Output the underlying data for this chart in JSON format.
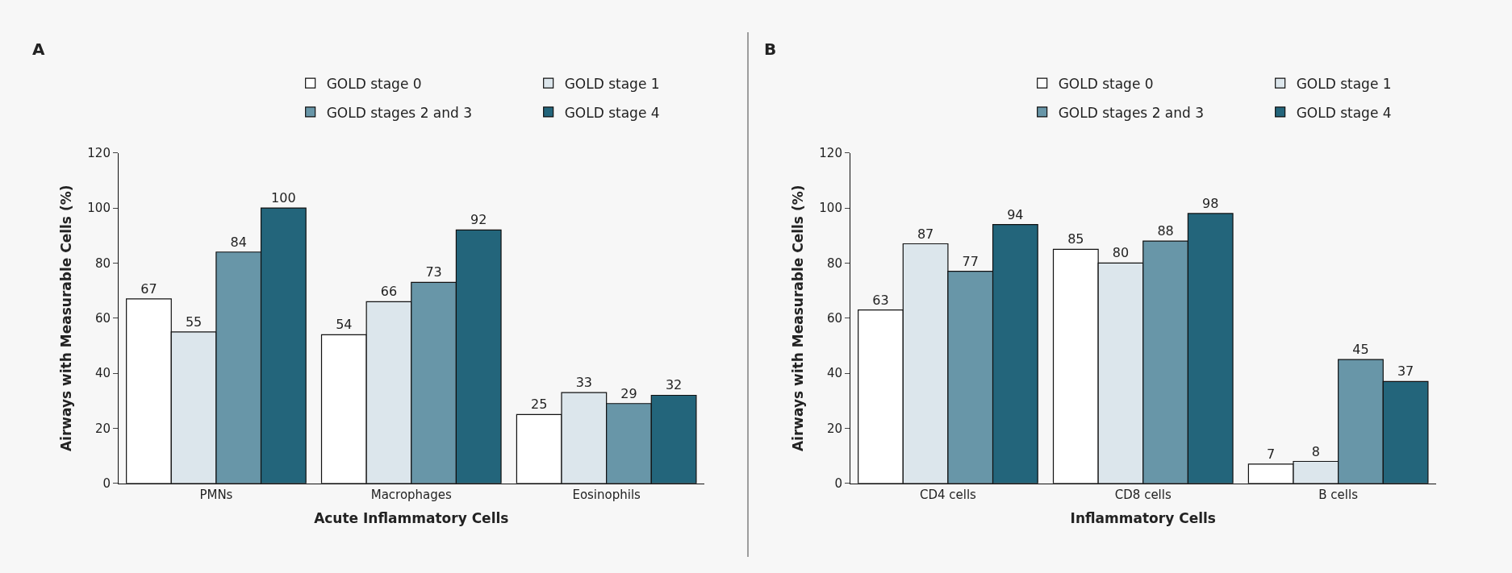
{
  "chart_data": [
    {
      "type": "bar",
      "title": "A",
      "xlabel": "Acute Inflammatory Cells",
      "ylabel": "Airways with Measurable Cells (%)",
      "categories": [
        "PMNs",
        "Macrophages",
        "Eosinophils"
      ],
      "series": [
        {
          "name": "GOLD stage 0",
          "color": "#ffffff",
          "values": [
            67,
            54,
            25
          ]
        },
        {
          "name": "GOLD stage 1",
          "color": "#dce6ec",
          "values": [
            55,
            66,
            33
          ]
        },
        {
          "name": "GOLD stages 2 and 3",
          "color": "#6896a8",
          "values": [
            84,
            73,
            29
          ]
        },
        {
          "name": "GOLD stage 4",
          "color": "#23657b",
          "values": [
            100,
            92,
            32
          ]
        }
      ],
      "ylim": [
        0,
        120
      ],
      "yticks": [
        0,
        20,
        40,
        60,
        80,
        100,
        120
      ],
      "grid": false,
      "legend": "top",
      "data_labels": true
    },
    {
      "type": "bar",
      "title": "B",
      "xlabel": "Inflammatory Cells",
      "ylabel": "Airways with Measurable Cells (%)",
      "categories": [
        "CD4 cells",
        "CD8 cells",
        "B cells"
      ],
      "series": [
        {
          "name": "GOLD stage 0",
          "color": "#ffffff",
          "values": [
            63,
            85,
            7
          ]
        },
        {
          "name": "GOLD stage 1",
          "color": "#dce6ec",
          "values": [
            87,
            80,
            8
          ]
        },
        {
          "name": "GOLD stages 2 and 3",
          "color": "#6896a8",
          "values": [
            77,
            88,
            45
          ]
        },
        {
          "name": "GOLD stage 4",
          "color": "#23657b",
          "values": [
            94,
            98,
            37
          ]
        }
      ],
      "ylim": [
        0,
        120
      ],
      "yticks": [
        0,
        20,
        40,
        60,
        80,
        100,
        120
      ],
      "grid": false,
      "legend": "top",
      "data_labels": true
    }
  ]
}
